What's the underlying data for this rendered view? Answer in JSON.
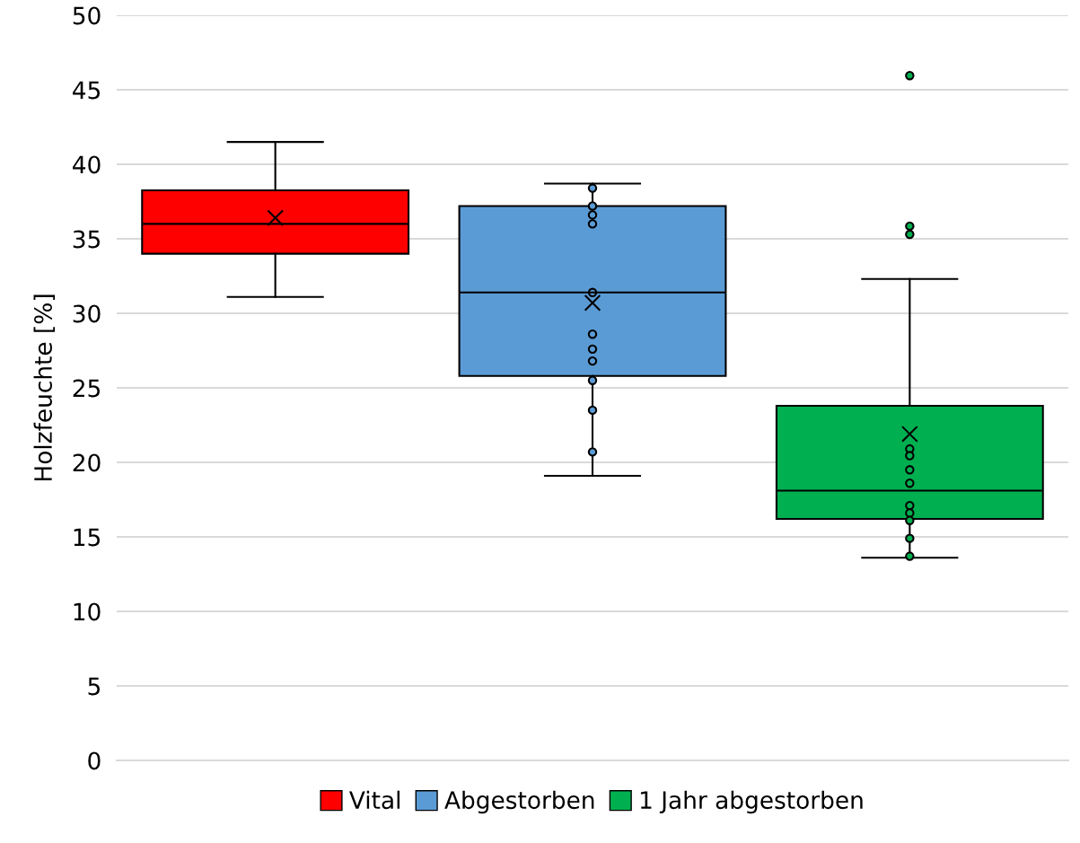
{
  "chart_data": {
    "type": "box",
    "ylabel": "Holzfeuchte [%]",
    "categories": [
      null,
      null,
      null
    ],
    "ylim": [
      0,
      50
    ],
    "yticks": [
      0,
      5,
      10,
      15,
      20,
      25,
      30,
      35,
      40,
      45,
      50
    ],
    "grid": "y",
    "legend": "bottom",
    "series": [
      {
        "name": "Vital",
        "color": "#ff0000",
        "boxes": [
          {
            "low": 31.1,
            "q1": 34.0,
            "median": 36.0,
            "q3": 38.25,
            "high": 41.5,
            "mean": 36.4
          },
          null,
          null
        ]
      },
      {
        "name": "Abgestorben",
        "color": "#5b9bd5",
        "boxes": [
          null,
          {
            "low": 19.1,
            "q1": 25.8,
            "median": 31.4,
            "q3": 37.2,
            "high": 38.7,
            "mean": 30.7,
            "outliers": [
              38.4,
              37.2,
              36.6,
              36.0,
              31.4,
              28.6,
              27.6,
              26.8,
              25.5,
              23.5,
              20.7
            ]
          },
          null
        ]
      },
      {
        "name": "1 Jahr abgestorben",
        "color": "#00b050",
        "boxes": [
          null,
          null,
          {
            "low": 13.6,
            "q1": 16.2,
            "median": 18.1,
            "q3": 23.8,
            "high": 32.3,
            "mean": 21.9,
            "outliers": [
              45.95,
              35.85,
              35.3,
              20.9,
              20.45,
              19.5,
              18.6,
              17.1,
              16.6,
              16.1,
              14.9,
              13.7
            ]
          }
        ]
      }
    ]
  }
}
